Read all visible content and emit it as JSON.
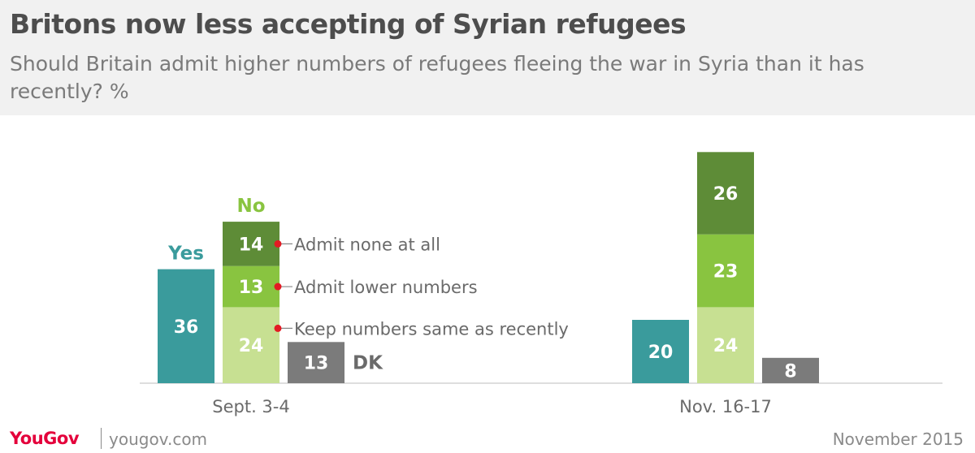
{
  "header": {
    "title": "Britons now less accepting of Syrian refugees",
    "subtitle": "Should Britain admit higher numbers of refugees fleeing the war in Syria than it has recently? %"
  },
  "footer": {
    "brand": "YouGov",
    "url": "yougov.com",
    "date": "November 2015"
  },
  "colors": {
    "yes": "#3a9b9c",
    "admit_none": "#5e8c37",
    "admit_lower": "#89c440",
    "keep_same": "#c7e092",
    "dk": "#7b7b7b",
    "yes_label": "#3a9b9c",
    "no_label": "#89c440",
    "marker": "#e31b23"
  },
  "chart_data": {
    "type": "bar",
    "categories": [
      "Sept. 3-4",
      "Nov. 16-17"
    ],
    "group_labels": {
      "yes": "Yes",
      "no": "No",
      "dk": "DK"
    },
    "series": [
      {
        "name": "Yes",
        "values": [
          36,
          20
        ]
      },
      {
        "name": "Keep numbers same as recently",
        "stack": "No",
        "values": [
          24,
          24
        ]
      },
      {
        "name": "Admit lower numbers",
        "stack": "No",
        "values": [
          13,
          23
        ]
      },
      {
        "name": "Admit none at all",
        "stack": "No",
        "values": [
          14,
          26
        ]
      },
      {
        "name": "DK",
        "values": [
          13,
          8
        ]
      }
    ],
    "annotations": [
      "Admit none at all",
      "Admit lower numbers",
      "Keep numbers same as recently"
    ],
    "grid": false
  }
}
